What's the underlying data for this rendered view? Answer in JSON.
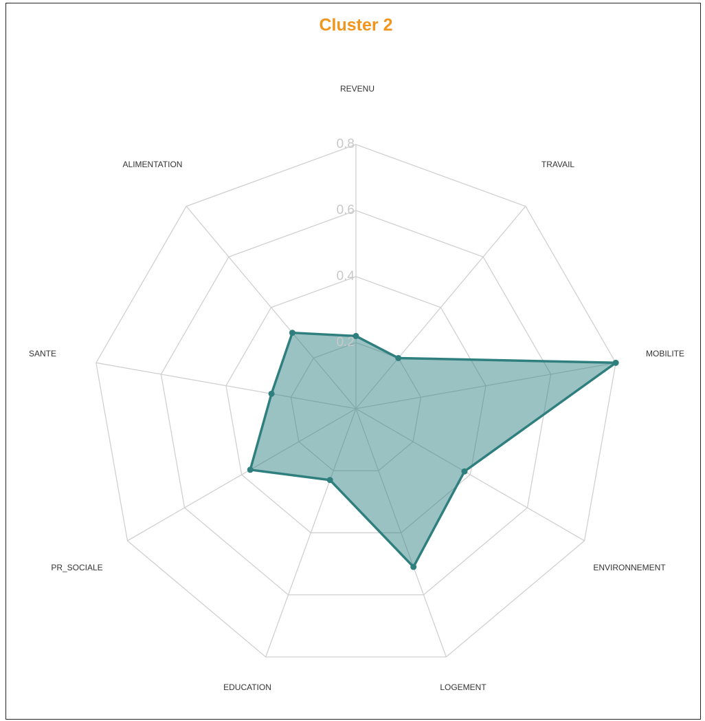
{
  "chart_data": {
    "type": "radar",
    "title": "Cluster 2",
    "categories": [
      "REVENU",
      "TRAVAIL",
      "MOBILITE",
      "ENVIRONNEMENT",
      "LOGEMENT",
      "EDUCATION",
      "PR_SOCIALE",
      "SANTE",
      "ALIMENTATION"
    ],
    "values": [
      0.22,
      0.2,
      0.8,
      0.38,
      0.51,
      0.23,
      0.37,
      0.26,
      0.3
    ],
    "color": "#2f7f7f",
    "ylim": [
      0,
      0.8
    ],
    "yticks": [
      0.2,
      0.4,
      0.6,
      0.8
    ],
    "grid": true
  }
}
